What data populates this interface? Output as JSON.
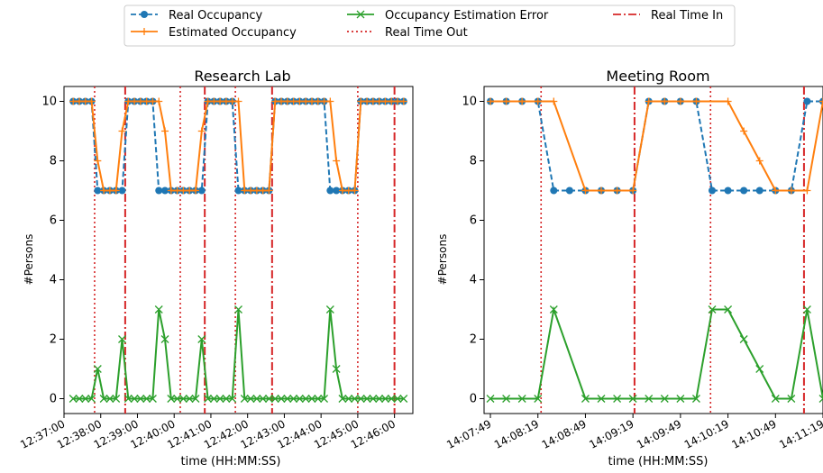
{
  "legend": {
    "placement": "top-center",
    "entries": [
      {
        "label": "Real Occupancy",
        "color": "#1f77b4",
        "style": "dashed",
        "marker": "circle"
      },
      {
        "label": "Estimated Occupancy",
        "color": "#ff7f0e",
        "style": "solid",
        "marker": "plus"
      },
      {
        "label": "Occupancy Estimation Error",
        "color": "#2ca02c",
        "style": "solid",
        "marker": "x"
      },
      {
        "label": "Real Time Out",
        "color": "#d62728",
        "style": "dotted",
        "marker": "none"
      },
      {
        "label": "Real Time In",
        "color": "#d62728",
        "style": "dashdot",
        "marker": "none"
      }
    ]
  },
  "chart_data": [
    {
      "type": "line",
      "title": "Research Lab",
      "xlabel": "time (HH:MM:SS)",
      "ylabel": "#Persons",
      "ylim": [
        -0.5,
        10.5
      ],
      "yticks": [
        0,
        2,
        4,
        6,
        8,
        10
      ],
      "xlim": [
        "12:37:00",
        "12:46:30"
      ],
      "xticks": [
        "12:37:00",
        "12:38:00",
        "12:39:00",
        "12:40:00",
        "12:41:00",
        "12:42:00",
        "12:43:00",
        "12:44:00",
        "12:45:00",
        "12:46:00"
      ],
      "grid": false,
      "series": [
        {
          "name": "Real Occupancy",
          "x": [
            "12:37:15",
            "12:37:25",
            "12:37:35",
            "12:37:45",
            "12:37:55",
            "12:38:05",
            "12:38:15",
            "12:38:25",
            "12:38:35",
            "12:38:45",
            "12:38:55",
            "12:39:05",
            "12:39:15",
            "12:39:25",
            "12:39:35",
            "12:39:45",
            "12:39:55",
            "12:40:05",
            "12:40:15",
            "12:40:25",
            "12:40:35",
            "12:40:45",
            "12:40:55",
            "12:41:05",
            "12:41:15",
            "12:41:25",
            "12:41:35",
            "12:41:45",
            "12:41:55",
            "12:42:05",
            "12:42:15",
            "12:42:25",
            "12:42:35",
            "12:42:45",
            "12:42:55",
            "12:43:05",
            "12:43:15",
            "12:43:25",
            "12:43:35",
            "12:43:45",
            "12:43:55",
            "12:44:05",
            "12:44:15",
            "12:44:25",
            "12:44:35",
            "12:44:45",
            "12:44:55",
            "12:45:05",
            "12:45:15",
            "12:45:25",
            "12:45:35",
            "12:45:45",
            "12:45:55",
            "12:46:05",
            "12:46:15"
          ],
          "y": [
            10,
            10,
            10,
            10,
            7,
            7,
            7,
            7,
            7,
            10,
            10,
            10,
            10,
            10,
            7,
            7,
            7,
            7,
            7,
            7,
            7,
            7,
            10,
            10,
            10,
            10,
            10,
            7,
            7,
            7,
            7,
            7,
            7,
            10,
            10,
            10,
            10,
            10,
            10,
            10,
            10,
            10,
            7,
            7,
            7,
            7,
            7,
            10,
            10,
            10,
            10,
            10,
            10,
            10,
            10
          ]
        },
        {
          "name": "Estimated Occupancy",
          "x": [
            "12:37:15",
            "12:37:25",
            "12:37:35",
            "12:37:45",
            "12:37:55",
            "12:38:05",
            "12:38:15",
            "12:38:25",
            "12:38:35",
            "12:38:45",
            "12:38:55",
            "12:39:05",
            "12:39:15",
            "12:39:25",
            "12:39:35",
            "12:39:45",
            "12:39:55",
            "12:40:05",
            "12:40:15",
            "12:40:25",
            "12:40:35",
            "12:40:45",
            "12:40:55",
            "12:41:05",
            "12:41:15",
            "12:41:25",
            "12:41:35",
            "12:41:45",
            "12:41:55",
            "12:42:05",
            "12:42:15",
            "12:42:25",
            "12:42:35",
            "12:42:45",
            "12:42:55",
            "12:43:05",
            "12:43:15",
            "12:43:25",
            "12:43:35",
            "12:43:45",
            "12:43:55",
            "12:44:05",
            "12:44:15",
            "12:44:25",
            "12:44:35",
            "12:44:45",
            "12:44:55",
            "12:45:05",
            "12:45:15",
            "12:45:25",
            "12:45:35",
            "12:45:45",
            "12:45:55",
            "12:46:05",
            "12:46:15"
          ],
          "y": [
            10,
            10,
            10,
            10,
            8,
            7,
            7,
            7,
            9,
            10,
            10,
            10,
            10,
            10,
            10,
            9,
            7,
            7,
            7,
            7,
            7,
            9,
            10,
            10,
            10,
            10,
            10,
            10,
            7,
            7,
            7,
            7,
            7,
            10,
            10,
            10,
            10,
            10,
            10,
            10,
            10,
            10,
            10,
            8,
            7,
            7,
            7,
            10,
            10,
            10,
            10,
            10,
            10,
            10,
            10
          ]
        },
        {
          "name": "Occupancy Estimation Error",
          "x": [
            "12:37:15",
            "12:37:25",
            "12:37:35",
            "12:37:45",
            "12:37:55",
            "12:38:05",
            "12:38:15",
            "12:38:25",
            "12:38:35",
            "12:38:45",
            "12:38:55",
            "12:39:05",
            "12:39:15",
            "12:39:25",
            "12:39:35",
            "12:39:45",
            "12:39:55",
            "12:40:05",
            "12:40:15",
            "12:40:25",
            "12:40:35",
            "12:40:45",
            "12:40:55",
            "12:41:05",
            "12:41:15",
            "12:41:25",
            "12:41:35",
            "12:41:45",
            "12:41:55",
            "12:42:05",
            "12:42:15",
            "12:42:25",
            "12:42:35",
            "12:42:45",
            "12:42:55",
            "12:43:05",
            "12:43:15",
            "12:43:25",
            "12:43:35",
            "12:43:45",
            "12:43:55",
            "12:44:05",
            "12:44:15",
            "12:44:25",
            "12:44:35",
            "12:44:45",
            "12:44:55",
            "12:45:05",
            "12:45:15",
            "12:45:25",
            "12:45:35",
            "12:45:45",
            "12:45:55",
            "12:46:05",
            "12:46:15"
          ],
          "y": [
            0,
            0,
            0,
            0,
            1,
            0,
            0,
            0,
            2,
            0,
            0,
            0,
            0,
            0,
            3,
            2,
            0,
            0,
            0,
            0,
            0,
            2,
            0,
            0,
            0,
            0,
            0,
            3,
            0,
            0,
            0,
            0,
            0,
            0,
            0,
            0,
            0,
            0,
            0,
            0,
            0,
            0,
            3,
            1,
            0,
            0,
            0,
            0,
            0,
            0,
            0,
            0,
            0,
            0,
            0
          ]
        }
      ],
      "real_time_out": [
        "12:37:50",
        "12:40:10",
        "12:41:40",
        "12:45:00"
      ],
      "real_time_in": [
        "12:38:40",
        "12:40:50",
        "12:42:40",
        "12:46:00"
      ]
    },
    {
      "type": "line",
      "title": "Meeting Room",
      "xlabel": "time (HH:MM:SS)",
      "ylabel": "#Persons",
      "ylim": [
        -0.5,
        10.5
      ],
      "yticks": [
        0,
        2,
        4,
        6,
        8,
        10
      ],
      "xlim": [
        "14:07:45",
        "14:11:19"
      ],
      "xticks": [
        "14:07:49",
        "14:08:19",
        "14:08:49",
        "14:09:19",
        "14:09:49",
        "14:10:19",
        "14:10:49",
        "14:11:19"
      ],
      "grid": false,
      "series": [
        {
          "name": "Real Occupancy",
          "x": [
            "14:07:49",
            "14:07:59",
            "14:08:09",
            "14:08:19",
            "14:08:29",
            "14:08:39",
            "14:08:49",
            "14:08:59",
            "14:09:09",
            "14:09:19",
            "14:09:29",
            "14:09:39",
            "14:09:49",
            "14:09:59",
            "14:10:09",
            "14:10:19",
            "14:10:29",
            "14:10:39",
            "14:10:49",
            "14:10:59",
            "14:11:09",
            "14:11:19"
          ],
          "y": [
            10,
            10,
            10,
            10,
            7,
            7,
            7,
            7,
            7,
            7,
            10,
            10,
            10,
            10,
            7,
            7,
            7,
            7,
            7,
            7,
            10,
            10
          ]
        },
        {
          "name": "Estimated Occupancy",
          "x": [
            "14:07:49",
            "14:07:59",
            "14:08:09",
            "14:08:19",
            "14:08:29",
            "14:08:49",
            "14:08:59",
            "14:09:09",
            "14:09:19",
            "14:09:29",
            "14:09:39",
            "14:09:49",
            "14:09:59",
            "14:10:19",
            "14:10:29",
            "14:10:39",
            "14:10:49",
            "14:10:59",
            "14:11:09",
            "14:11:19"
          ],
          "y": [
            10,
            10,
            10,
            10,
            10,
            7,
            7,
            7,
            7,
            10,
            10,
            10,
            10,
            10,
            9,
            8,
            7,
            7,
            7,
            10
          ]
        },
        {
          "name": "Occupancy Estimation Error",
          "x": [
            "14:07:49",
            "14:07:59",
            "14:08:09",
            "14:08:19",
            "14:08:29",
            "14:08:49",
            "14:08:59",
            "14:09:09",
            "14:09:19",
            "14:09:29",
            "14:09:39",
            "14:09:49",
            "14:09:59",
            "14:10:09",
            "14:10:19",
            "14:10:29",
            "14:10:39",
            "14:10:49",
            "14:10:59",
            "14:11:09",
            "14:11:19"
          ],
          "y": [
            0,
            0,
            0,
            0,
            3,
            0,
            0,
            0,
            0,
            0,
            0,
            0,
            0,
            3,
            3,
            2,
            1,
            0,
            0,
            3,
            0
          ]
        }
      ],
      "real_time_out": [
        "14:08:21",
        "14:10:08"
      ],
      "real_time_in": [
        "14:09:20",
        "14:11:07"
      ]
    }
  ]
}
